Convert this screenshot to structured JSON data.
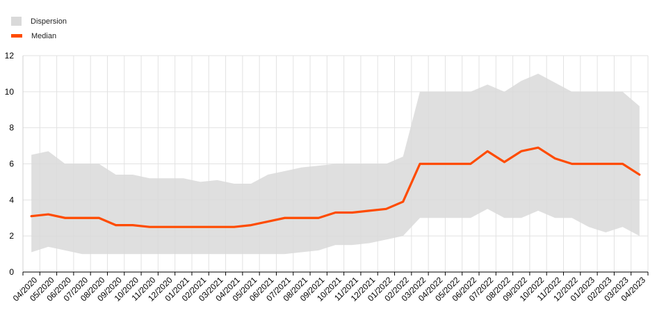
{
  "chart_data": {
    "type": "line",
    "title": "",
    "xlabel": "",
    "ylabel": "",
    "ylim": [
      0,
      12
    ],
    "yticks": [
      0,
      2,
      4,
      6,
      8,
      10,
      12
    ],
    "grid": true,
    "legend_position": "top-left",
    "categories": [
      "04/2020",
      "05/2020",
      "06/2020",
      "07/2020",
      "08/2020",
      "09/2020",
      "10/2020",
      "11/2020",
      "12/2020",
      "01/2021",
      "02/2021",
      "03/2021",
      "04/2021",
      "05/2021",
      "06/2021",
      "07/2021",
      "08/2021",
      "09/2021",
      "10/2021",
      "11/2021",
      "12/2021",
      "01/2022",
      "02/2022",
      "03/2022",
      "04/2022",
      "05/2022",
      "06/2022",
      "07/2022",
      "08/2022",
      "09/2022",
      "10/2022",
      "11/2022",
      "12/2022",
      "01/2023",
      "02/2023",
      "03/2023",
      "04/2023"
    ],
    "series": [
      {
        "name": "Dispersion",
        "kind": "band",
        "color": "#d9d9d9",
        "upper": [
          6.5,
          6.7,
          6.0,
          6.0,
          6.0,
          5.4,
          5.4,
          5.2,
          5.2,
          5.2,
          5.0,
          5.1,
          4.9,
          4.9,
          5.4,
          5.6,
          5.8,
          5.9,
          6.0,
          6.0,
          6.0,
          6.0,
          6.4,
          10.0,
          10.0,
          10.0,
          10.0,
          10.4,
          10.0,
          10.6,
          11.0,
          10.5,
          10.0,
          10.0,
          10.0,
          10.0,
          9.2
        ],
        "lower": [
          1.1,
          1.4,
          1.2,
          1.0,
          1.0,
          1.0,
          1.0,
          1.0,
          1.0,
          1.0,
          1.0,
          1.0,
          1.0,
          1.0,
          1.0,
          1.0,
          1.1,
          1.2,
          1.5,
          1.5,
          1.6,
          1.8,
          2.0,
          3.0,
          3.0,
          3.0,
          3.0,
          3.5,
          3.0,
          3.0,
          3.4,
          3.0,
          3.0,
          2.5,
          2.2,
          2.5,
          2.0
        ]
      },
      {
        "name": "Median",
        "kind": "line",
        "color": "#ff4b00",
        "values": [
          3.1,
          3.2,
          3.0,
          3.0,
          3.0,
          2.6,
          2.6,
          2.5,
          2.5,
          2.5,
          2.5,
          2.5,
          2.5,
          2.6,
          2.8,
          3.0,
          3.0,
          3.0,
          3.3,
          3.3,
          3.4,
          3.5,
          3.9,
          6.0,
          6.0,
          6.0,
          6.0,
          6.7,
          6.1,
          6.7,
          6.9,
          6.3,
          6.0,
          6.0,
          6.0,
          6.0,
          5.4
        ]
      }
    ]
  },
  "legend": {
    "items": [
      {
        "label": "Dispersion",
        "color": "#d9d9d9"
      },
      {
        "label": "Median",
        "color": "#ff4b00"
      }
    ]
  }
}
